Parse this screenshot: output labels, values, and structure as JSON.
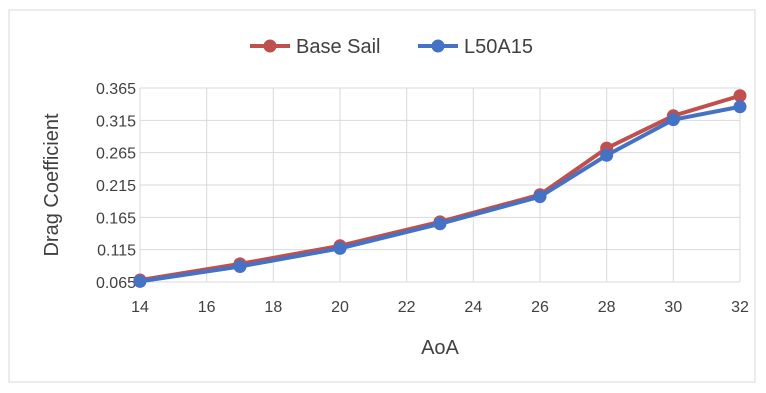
{
  "chart_data": {
    "type": "line",
    "title": "",
    "xlabel": "AoA",
    "ylabel": "Drag  Coefficient",
    "x": [
      14,
      17,
      20,
      23,
      26,
      28,
      30,
      32
    ],
    "xlim": [
      14,
      32
    ],
    "xticks": [
      14,
      16,
      18,
      20,
      22,
      24,
      26,
      28,
      30,
      32
    ],
    "ylim": [
      0.065,
      0.365
    ],
    "yticks": [
      "0.065",
      "0.115",
      "0.165",
      "0.215",
      "0.265",
      "0.315",
      "0.365"
    ],
    "grid": true,
    "legend_position": "top",
    "series": [
      {
        "name": "Base Sail",
        "color": "#c0504d",
        "values": [
          0.068,
          0.093,
          0.121,
          0.158,
          0.2,
          0.272,
          0.322,
          0.353
        ]
      },
      {
        "name": "L50A15",
        "color": "#4472c4",
        "values": [
          0.066,
          0.089,
          0.117,
          0.155,
          0.197,
          0.261,
          0.316,
          0.336
        ]
      }
    ]
  }
}
